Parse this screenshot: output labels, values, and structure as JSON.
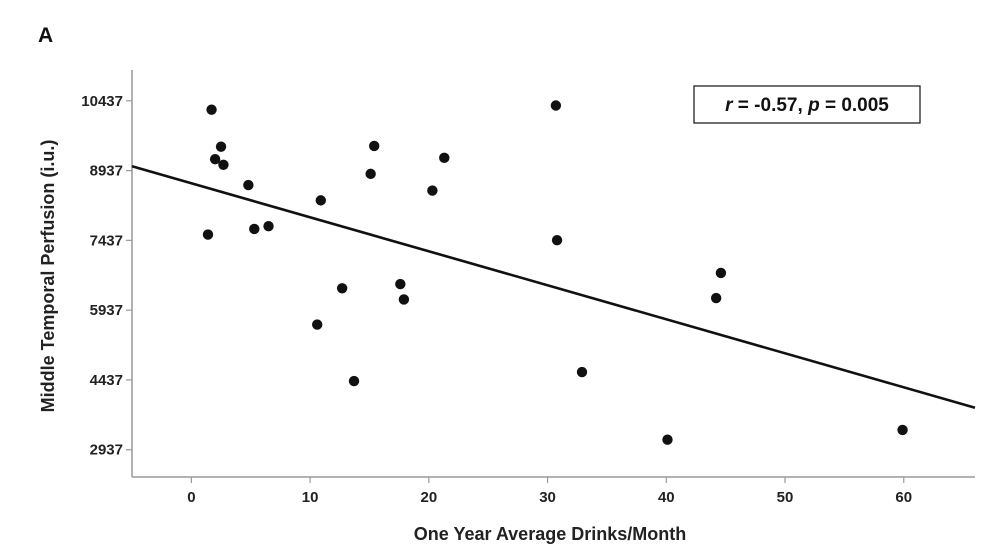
{
  "panel_label": "A",
  "chart_data": {
    "type": "scatter",
    "xlabel": "One Year Average Drinks/Month",
    "ylabel": "Middle Temporal Perfusion (i.u.)",
    "xlim": [
      -5,
      66
    ],
    "ylim": [
      2350,
      11100
    ],
    "xticks": [
      0,
      10,
      20,
      30,
      40,
      50,
      60
    ],
    "yticks": [
      2937,
      4437,
      5937,
      7437,
      8937,
      10437
    ],
    "grid": false,
    "annotation": {
      "r_symbol": "r",
      "r_text": " = -0.57, ",
      "p_symbol": "p",
      "p_text": " = 0.005"
    },
    "regression_line": {
      "x": [
        -5,
        66
      ],
      "y": [
        9030,
        3840
      ]
    },
    "points": [
      {
        "x": 1.7,
        "y": 10247
      },
      {
        "x": 2.0,
        "y": 9182
      },
      {
        "x": 2.5,
        "y": 9452
      },
      {
        "x": 2.7,
        "y": 9062
      },
      {
        "x": 1.4,
        "y": 7562
      },
      {
        "x": 4.8,
        "y": 8627
      },
      {
        "x": 5.3,
        "y": 7682
      },
      {
        "x": 6.5,
        "y": 7742
      },
      {
        "x": 10.9,
        "y": 8297
      },
      {
        "x": 10.6,
        "y": 5627
      },
      {
        "x": 12.7,
        "y": 6407
      },
      {
        "x": 13.7,
        "y": 4412
      },
      {
        "x": 15.1,
        "y": 8867
      },
      {
        "x": 15.4,
        "y": 9467
      },
      {
        "x": 17.6,
        "y": 6497
      },
      {
        "x": 17.9,
        "y": 6167
      },
      {
        "x": 20.3,
        "y": 8507
      },
      {
        "x": 21.3,
        "y": 9212
      },
      {
        "x": 30.7,
        "y": 10337
      },
      {
        "x": 30.8,
        "y": 7442
      },
      {
        "x": 32.9,
        "y": 4607
      },
      {
        "x": 40.1,
        "y": 3152
      },
      {
        "x": 44.2,
        "y": 6197
      },
      {
        "x": 44.6,
        "y": 6737
      },
      {
        "x": 59.9,
        "y": 3362
      }
    ],
    "colors": {
      "points": "#111111",
      "line": "#111111",
      "axis": "#999999"
    }
  }
}
